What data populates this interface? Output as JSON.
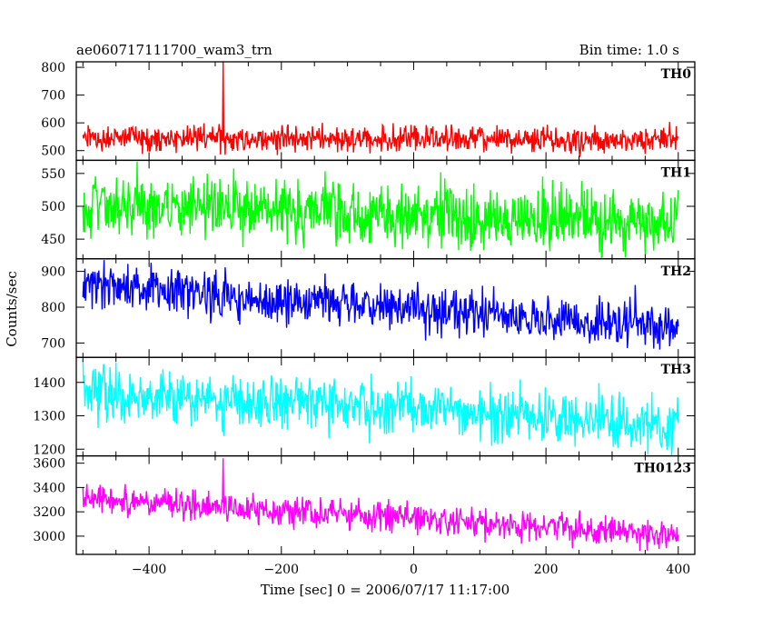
{
  "header": {
    "title_left": "ae060717111700_wam3_trn",
    "title_right": "Bin time: 1.0 s"
  },
  "chart_data": {
    "type": "line",
    "xlabel": "Time [sec] 0 = 2006/07/17 11:17:00",
    "ylabel": "Counts/sec",
    "xlim": [
      -510,
      425
    ],
    "x_step": 1,
    "x_ticks": [
      -400,
      -200,
      0,
      200,
      400
    ],
    "grid": false,
    "panels": [
      {
        "label": "TH0",
        "color": "#ff0000",
        "ylim": [
          465,
          820
        ],
        "y_ticks": [
          500,
          600,
          700,
          800
        ],
        "series": {
          "x_start": -500,
          "x_end": 400,
          "trend_start": 545,
          "trend_end": 538,
          "noise_sd": 23,
          "spikes": [
            {
              "x": -288,
              "y": 820
            }
          ]
        }
      },
      {
        "label": "TH1",
        "color": "#00ff00",
        "ylim": [
          420,
          570
        ],
        "y_ticks": [
          450,
          500,
          550
        ],
        "series": {
          "x_start": -500,
          "x_end": 400,
          "trend_start": 505,
          "trend_end": 470,
          "noise_sd": 24,
          "spikes": []
        }
      },
      {
        "label": "TH2",
        "color": "#0000ff",
        "ylim": [
          660,
          935
        ],
        "y_ticks": [
          700,
          800,
          900
        ],
        "series": {
          "x_start": -500,
          "x_end": 400,
          "trend_start": 860,
          "trend_end": 740,
          "noise_sd": 32,
          "spikes": [
            {
              "x": 335,
              "y": 862
            }
          ]
        }
      },
      {
        "label": "TH3",
        "color": "#00ffff",
        "ylim": [
          1180,
          1475
        ],
        "y_ticks": [
          1200,
          1300,
          1400
        ],
        "series": {
          "x_start": -500,
          "x_end": 400,
          "trend_start": 1375,
          "trend_end": 1275,
          "noise_sd": 40,
          "spikes": []
        }
      },
      {
        "label": "TH0123",
        "color": "#ff00ff",
        "ylim": [
          2850,
          3660
        ],
        "y_ticks": [
          3000,
          3200,
          3400,
          3600
        ],
        "series": {
          "x_start": -500,
          "x_end": 400,
          "trend_start": 3310,
          "trend_end": 3010,
          "noise_sd": 60,
          "spikes": [
            {
              "x": -288,
              "y": 3640
            }
          ]
        }
      }
    ]
  }
}
